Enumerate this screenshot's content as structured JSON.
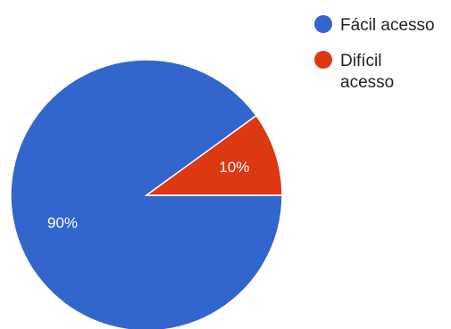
{
  "chart_data": {
    "type": "pie",
    "series": [
      {
        "name": "Fácil acesso",
        "value": 90,
        "label": "90%",
        "color": "#3366cc"
      },
      {
        "name": "Difícil acesso",
        "value": 10,
        "label": "10%",
        "color": "#dc3912"
      }
    ],
    "legend_position": "top-right",
    "legend": [
      {
        "lines": [
          "Fácil acesso"
        ]
      },
      {
        "lines": [
          "Difícil",
          "acesso"
        ]
      }
    ]
  }
}
